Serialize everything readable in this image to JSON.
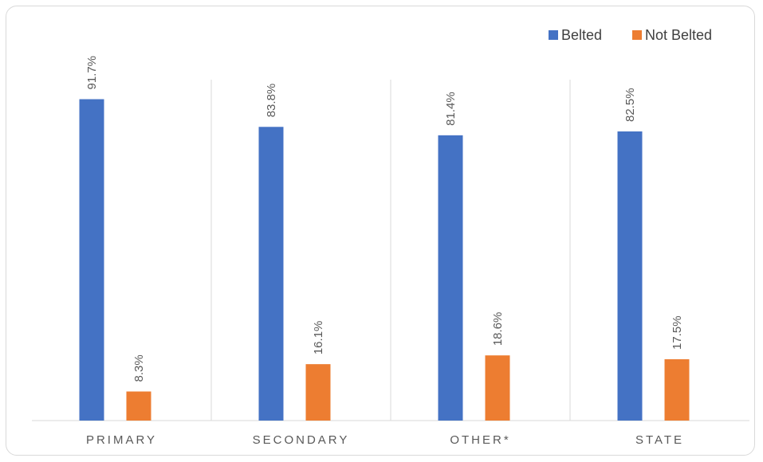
{
  "chart_data": {
    "type": "bar",
    "categories": [
      "PRIMARY",
      "SECONDARY",
      "OTHER*",
      "STATE"
    ],
    "series": [
      {
        "name": "Belted",
        "values": [
          91.7,
          83.8,
          81.4,
          82.5
        ],
        "labels": [
          "91.7%",
          "83.8%",
          "81.4%",
          "82.5%"
        ],
        "color": "#4472c4"
      },
      {
        "name": "Not Belted",
        "values": [
          8.3,
          16.1,
          18.6,
          17.5
        ],
        "labels": [
          "8.3%",
          "16.1%",
          "18.6%",
          "17.5%"
        ],
        "color": "#ed7d31"
      }
    ],
    "ylim": [
      0,
      100
    ],
    "legend_position": "top-right",
    "grid": false,
    "category_separators": true
  }
}
